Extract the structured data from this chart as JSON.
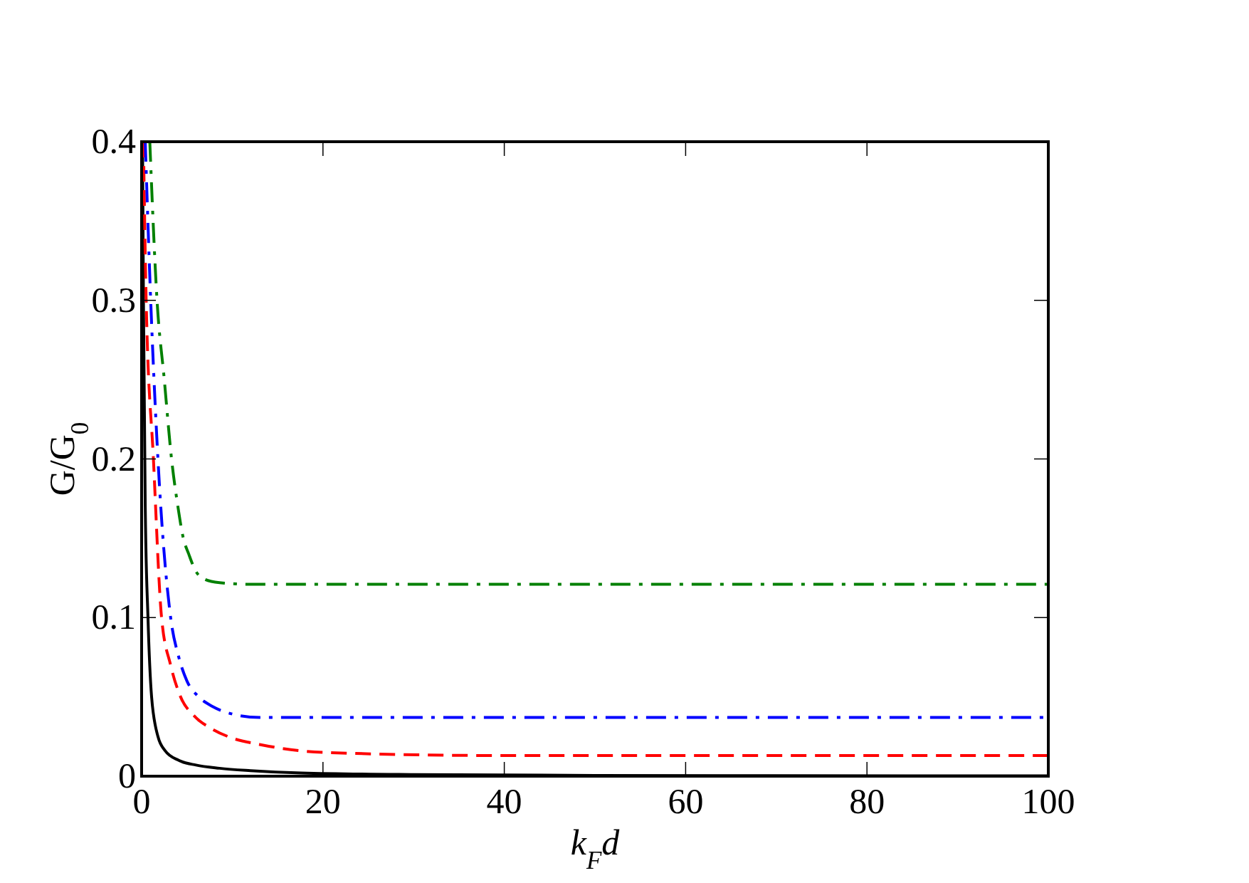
{
  "chart_data": {
    "type": "line",
    "xlabel": "k$_{F}$d",
    "ylabel": "G/G$_{0}$",
    "xlim": [
      0,
      100
    ],
    "ylim": [
      0,
      0.4
    ],
    "xticks": [
      0,
      20,
      40,
      60,
      80,
      100
    ],
    "yticks": [
      0,
      0.1,
      0.2,
      0.3,
      0.4
    ],
    "grid": false,
    "marker": "none",
    "series": [
      {
        "color": "#000000",
        "line_style": "solid",
        "x": [
          0.1,
          0.2,
          0.4,
          0.7,
          1.1,
          1.8,
          2.6,
          4.1,
          6,
          8.6,
          12,
          17.6,
          30,
          50,
          100
        ],
        "values": [
          0.4,
          0.3,
          0.17,
          0.1,
          0.05,
          0.025,
          0.016,
          0.01,
          0.007,
          0.005,
          0.0035,
          0.002,
          0.001,
          0.0005,
          0.0002
        ]
      },
      {
        "color": "#ff0000",
        "line_style": "dashed",
        "x": [
          0.2,
          0.5,
          1.3,
          2.2,
          3.2,
          4.3,
          5.8,
          7.7,
          10,
          13,
          20,
          40,
          100
        ],
        "values": [
          0.4,
          0.3,
          0.2,
          0.1,
          0.07,
          0.05,
          0.038,
          0.03,
          0.024,
          0.02,
          0.015,
          0.013,
          0.013
        ]
      },
      {
        "color": "#0000ff",
        "line_style": "dashdot",
        "x": [
          0.4,
          1,
          1.8,
          3.2,
          4.1,
          5,
          6.3,
          7.8,
          9.5,
          13,
          20,
          50,
          100
        ],
        "values": [
          0.4,
          0.3,
          0.2,
          0.1,
          0.075,
          0.06,
          0.05,
          0.044,
          0.04,
          0.037,
          0.037,
          0.037,
          0.037
        ]
      },
      {
        "color": "#008000",
        "line_style": "dashdot",
        "x": [
          0.9,
          1.7,
          2.5,
          3.3,
          4,
          4.6,
          5.2,
          5.9,
          7,
          8.6,
          12,
          30,
          100
        ],
        "values": [
          0.4,
          0.3,
          0.25,
          0.2,
          0.17,
          0.15,
          0.14,
          0.13,
          0.124,
          0.122,
          0.121,
          0.121,
          0.121
        ]
      }
    ]
  }
}
